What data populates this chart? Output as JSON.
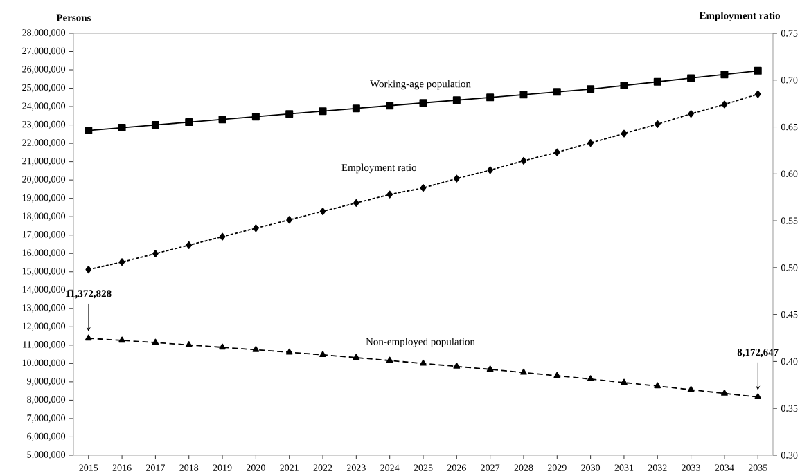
{
  "chart_data": {
    "type": "line",
    "ylabel": "Persons",
    "y2label": "Employment ratio",
    "categories": [
      "2015",
      "2016",
      "2017",
      "2018",
      "2019",
      "2020",
      "2021",
      "2022",
      "2023",
      "2024",
      "2025",
      "2026",
      "2027",
      "2028",
      "2029",
      "2030",
      "2031",
      "2032",
      "2033",
      "2034",
      "2035"
    ],
    "series": [
      {
        "name": "Working-age population",
        "color": "#000000",
        "marker": "square",
        "line_style": "solid",
        "values": [
          22700000,
          22850000,
          23000000,
          23150000,
          23300000,
          23450000,
          23600000,
          23750000,
          23900000,
          24050000,
          24200000,
          24350000,
          24500000,
          24650000,
          24800000,
          24950000,
          25150000,
          25350000,
          25550000,
          25750000,
          25950000
        ]
      },
      {
        "name": "Employment ratio",
        "color": "#000000",
        "marker": "diamond",
        "line_style": "dotted",
        "axis": "y2",
        "values": [
          0.498,
          0.506,
          0.515,
          0.524,
          0.533,
          0.542,
          0.551,
          0.56,
          0.569,
          0.578,
          0.585,
          0.595,
          0.604,
          0.614,
          0.623,
          0.633,
          0.643,
          0.653,
          0.664,
          0.674,
          0.685
        ]
      },
      {
        "name": "Non-employed population",
        "color": "#000000",
        "marker": "triangle",
        "line_style": "dashed",
        "values": [
          11372828,
          11260000,
          11140000,
          11010000,
          10880000,
          10750000,
          10610000,
          10470000,
          10320000,
          10160000,
          10000000,
          9840000,
          9680000,
          9510000,
          9330000,
          9150000,
          8960000,
          8770000,
          8570000,
          8370000,
          8172647
        ]
      }
    ],
    "ylim": [
      5000000,
      28000000
    ],
    "yticks": [
      {
        "value": 5000000,
        "label": "5,000,000"
      },
      {
        "value": 6000000,
        "label": "6,000,000"
      },
      {
        "value": 7000000,
        "label": "7,000,000"
      },
      {
        "value": 8000000,
        "label": "8,000,000"
      },
      {
        "value": 9000000,
        "label": "9,000,000"
      },
      {
        "value": 10000000,
        "label": "10,000,000"
      },
      {
        "value": 11000000,
        "label": "11,000,000"
      },
      {
        "value": 12000000,
        "label": "12,000,000"
      },
      {
        "value": 13000000,
        "label": "13,000,000"
      },
      {
        "value": 14000000,
        "label": "14,000,000"
      },
      {
        "value": 15000000,
        "label": "15,000,000"
      },
      {
        "value": 16000000,
        "label": "16,000,000"
      },
      {
        "value": 17000000,
        "label": "17,000,000"
      },
      {
        "value": 18000000,
        "label": "18,000,000"
      },
      {
        "value": 19000000,
        "label": "19,000,000"
      },
      {
        "value": 20000000,
        "label": "20,000,000"
      },
      {
        "value": 21000000,
        "label": "21,000,000"
      },
      {
        "value": 22000000,
        "label": "22,000,000"
      },
      {
        "value": 23000000,
        "label": "23,000,000"
      },
      {
        "value": 24000000,
        "label": "24,000,000"
      },
      {
        "value": 25000000,
        "label": "25,000,000"
      },
      {
        "value": 26000000,
        "label": "26,000,000"
      },
      {
        "value": 27000000,
        "label": "27,000,000"
      },
      {
        "value": 28000000,
        "label": "28,000,000"
      }
    ],
    "y2lim": [
      0.3,
      0.75
    ],
    "y2ticks": [
      {
        "value": 0.3,
        "label": "0.30"
      },
      {
        "value": 0.35,
        "label": "0.35"
      },
      {
        "value": 0.4,
        "label": "0.40"
      },
      {
        "value": 0.45,
        "label": "0.45"
      },
      {
        "value": 0.5,
        "label": "0.50"
      },
      {
        "value": 0.55,
        "label": "0.55"
      },
      {
        "value": 0.6,
        "label": "0.60"
      },
      {
        "value": 0.65,
        "label": "0.65"
      },
      {
        "value": 0.7,
        "label": "0.70"
      },
      {
        "value": 0.75,
        "label": "0.75"
      }
    ],
    "annotations": [
      {
        "text": "11,372,828",
        "x": "2015",
        "y": 11372828
      },
      {
        "text": "8,172,647",
        "x": "2035",
        "y": 8172647
      }
    ],
    "grid": false,
    "legend": false
  }
}
